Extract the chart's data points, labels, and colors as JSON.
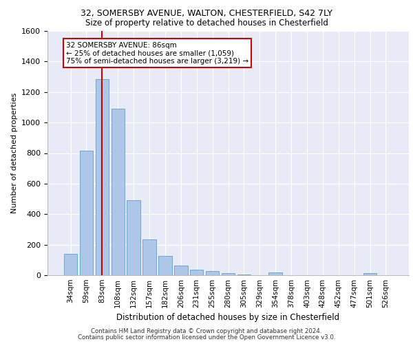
{
  "title_line1": "32, SOMERSBY AVENUE, WALTON, CHESTERFIELD, S42 7LY",
  "title_line2": "Size of property relative to detached houses in Chesterfield",
  "xlabel": "Distribution of detached houses by size in Chesterfield",
  "ylabel": "Number of detached properties",
  "footer_line1": "Contains HM Land Registry data © Crown copyright and database right 2024.",
  "footer_line2": "Contains public sector information licensed under the Open Government Licence v3.0.",
  "bar_labels": [
    "34sqm",
    "59sqm",
    "83sqm",
    "108sqm",
    "132sqm",
    "157sqm",
    "182sqm",
    "206sqm",
    "231sqm",
    "255sqm",
    "280sqm",
    "305sqm",
    "329sqm",
    "354sqm",
    "378sqm",
    "403sqm",
    "428sqm",
    "452sqm",
    "477sqm",
    "501sqm",
    "526sqm"
  ],
  "bar_values": [
    140,
    815,
    1285,
    1090,
    490,
    235,
    125,
    65,
    38,
    27,
    15,
    5,
    2,
    17,
    2,
    2,
    2,
    2,
    2,
    12,
    2
  ],
  "bar_color": "#aec6e8",
  "bar_edge_color": "#5a9fd4",
  "bg_color": "#e8eaf6",
  "grid_color": "#ffffff",
  "property_label": "32 SOMERSBY AVENUE: 86sqm",
  "pct_smaller_label": "← 25% of detached houses are smaller (1,059)",
  "pct_larger_label": "75% of semi-detached houses are larger (3,219) →",
  "annotation_box_color": "#ffffff",
  "annotation_box_edge": "#cc0000",
  "vline_color": "#cc0000",
  "vline_x_idx": 2,
  "ylim": [
    0,
    1600
  ],
  "yticks": [
    0,
    200,
    400,
    600,
    800,
    1000,
    1200,
    1400,
    1600
  ]
}
